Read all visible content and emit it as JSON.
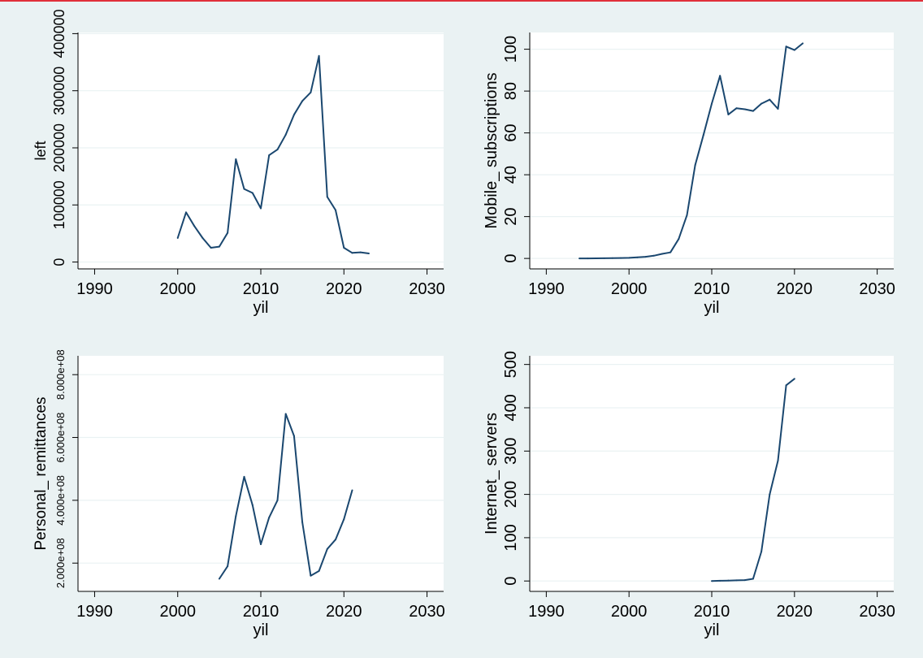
{
  "colors": {
    "background": "#eaf2f3",
    "plot_area": "#ffffff",
    "line": "#1a476f",
    "grid": "#eaf2f3",
    "top_border": "#e0303a"
  },
  "chart_data": [
    {
      "type": "line",
      "xlabel": "yil",
      "ylabel": "left",
      "xlim": [
        1988,
        2032
      ],
      "ylim": [
        -12000,
        402000
      ],
      "xticks": [
        1990,
        2000,
        2010,
        2020,
        2030
      ],
      "yticks": [
        0,
        100000,
        200000,
        300000,
        400000
      ],
      "ytick_labels": [
        "0",
        "100000",
        "200000",
        "300000",
        "400000"
      ],
      "grid": true,
      "x": [
        2000,
        2001,
        2002,
        2003,
        2004,
        2005,
        2006,
        2007,
        2008,
        2009,
        2010,
        2011,
        2012,
        2013,
        2014,
        2015,
        2016,
        2017,
        2018,
        2019,
        2020,
        2021,
        2022,
        2023
      ],
      "y": [
        42000,
        87000,
        63000,
        42000,
        25000,
        27000,
        51000,
        180000,
        128000,
        121000,
        94000,
        187000,
        197000,
        223000,
        258000,
        282000,
        297000,
        361000,
        114000,
        91000,
        25000,
        16000,
        17000,
        15000
      ]
    },
    {
      "type": "line",
      "xlabel": "yil",
      "ylabel": "Mobile_ subscriptions",
      "xlim": [
        1988,
        2032
      ],
      "ylim": [
        -5,
        108
      ],
      "xticks": [
        1990,
        2000,
        2010,
        2020,
        2030
      ],
      "yticks": [
        0,
        20,
        40,
        60,
        80,
        100
      ],
      "ytick_labels": [
        "0",
        "20",
        "40",
        "60",
        "80",
        "100"
      ],
      "grid": true,
      "x": [
        1994,
        1995,
        1996,
        1997,
        1998,
        1999,
        2000,
        2001,
        2002,
        2003,
        2004,
        2005,
        2006,
        2007,
        2008,
        2009,
        2010,
        2011,
        2012,
        2013,
        2014,
        2015,
        2016,
        2017,
        2018,
        2019,
        2020,
        2021
      ],
      "y": [
        0.0,
        0.0,
        0.05,
        0.1,
        0.15,
        0.2,
        0.3,
        0.5,
        0.8,
        1.3,
        2.2,
        2.9,
        9.3,
        20.7,
        44.6,
        59.0,
        74.0,
        87.3,
        68.8,
        71.8,
        71.3,
        70.5,
        74.0,
        75.9,
        71.5,
        101.3,
        99.6,
        102.8
      ]
    },
    {
      "type": "line",
      "xlabel": "yil",
      "ylabel": "Personal_ remittances",
      "xlim": [
        1988,
        2032
      ],
      "ylim": [
        110000000,
        860000000
      ],
      "xticks": [
        1990,
        2000,
        2010,
        2020,
        2030
      ],
      "yticks": [
        200000000,
        400000000,
        600000000,
        800000000
      ],
      "ytick_labels": [
        "2.000e+08",
        "4.000e+08",
        "6.000e+08",
        "8.000e+08"
      ],
      "grid": true,
      "x": [
        2005,
        2006,
        2007,
        2008,
        2009,
        2010,
        2011,
        2012,
        2013,
        2014,
        2015,
        2016,
        2017,
        2018,
        2019,
        2020,
        2021
      ],
      "y": [
        150000000,
        190000000,
        350000000,
        475000000,
        385000000,
        260000000,
        345000000,
        400000000,
        675000000,
        605000000,
        330000000,
        160000000,
        175000000,
        245000000,
        275000000,
        340000000,
        432000000
      ]
    },
    {
      "type": "line",
      "xlabel": "yil",
      "ylabel": "Internet_ servers",
      "xlim": [
        1988,
        2032
      ],
      "ylim": [
        -24,
        520
      ],
      "xticks": [
        1990,
        2000,
        2010,
        2020,
        2030
      ],
      "yticks": [
        0,
        100,
        200,
        300,
        400,
        500
      ],
      "ytick_labels": [
        "0",
        "100",
        "200",
        "300",
        "400",
        "500"
      ],
      "grid": true,
      "x": [
        2010,
        2011,
        2012,
        2013,
        2014,
        2015,
        2016,
        2017,
        2018,
        2019,
        2020
      ],
      "y": [
        0,
        0.5,
        1,
        1.5,
        2,
        5,
        68,
        200,
        278,
        452,
        467
      ]
    }
  ]
}
